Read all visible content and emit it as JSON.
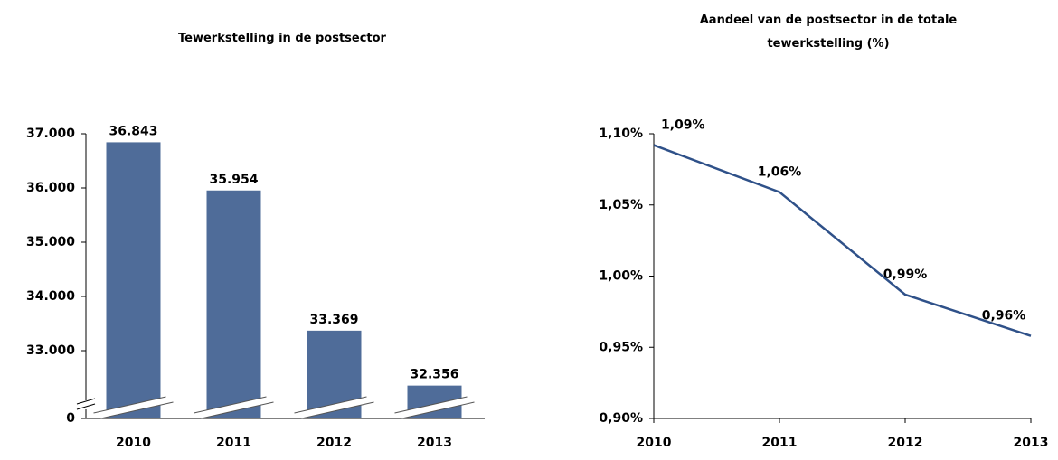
{
  "chart_data": [
    {
      "type": "bar",
      "title": "Tewerkstelling in de postsector",
      "categories": [
        "2010",
        "2011",
        "2012",
        "2013"
      ],
      "values": [
        36843,
        35954,
        33369,
        32356
      ],
      "value_labels": [
        "36.843",
        "35.954",
        "33.369",
        "32.356"
      ],
      "color": "#4f6c99",
      "ylim": [
        31750,
        37000
      ],
      "yticks": [
        {
          "value": 0,
          "label": "0"
        },
        {
          "value": 33000,
          "label": "33.000"
        },
        {
          "value": 34000,
          "label": "34.000"
        },
        {
          "value": 35000,
          "label": "35.000"
        },
        {
          "value": 36000,
          "label": "36.000"
        },
        {
          "value": 37000,
          "label": "37.000"
        }
      ],
      "axis_break": true
    },
    {
      "type": "line",
      "title": "Aandeel van de postsector in de totale tewerkstelling (%)",
      "categories": [
        "2010",
        "2011",
        "2012",
        "2013"
      ],
      "values": [
        1.092,
        1.059,
        0.987,
        0.958
      ],
      "value_labels": [
        "1,09%",
        "1,06%",
        "0,99%",
        "0,96%"
      ],
      "color": "#2f5189",
      "ylim": [
        0.9,
        1.1
      ],
      "yticks": [
        {
          "value": 0.9,
          "label": "0,90%"
        },
        {
          "value": 0.95,
          "label": "0,95%"
        },
        {
          "value": 1.0,
          "label": "1,00%"
        },
        {
          "value": 1.05,
          "label": "1,05%"
        },
        {
          "value": 1.1,
          "label": "1,10%"
        }
      ]
    }
  ]
}
